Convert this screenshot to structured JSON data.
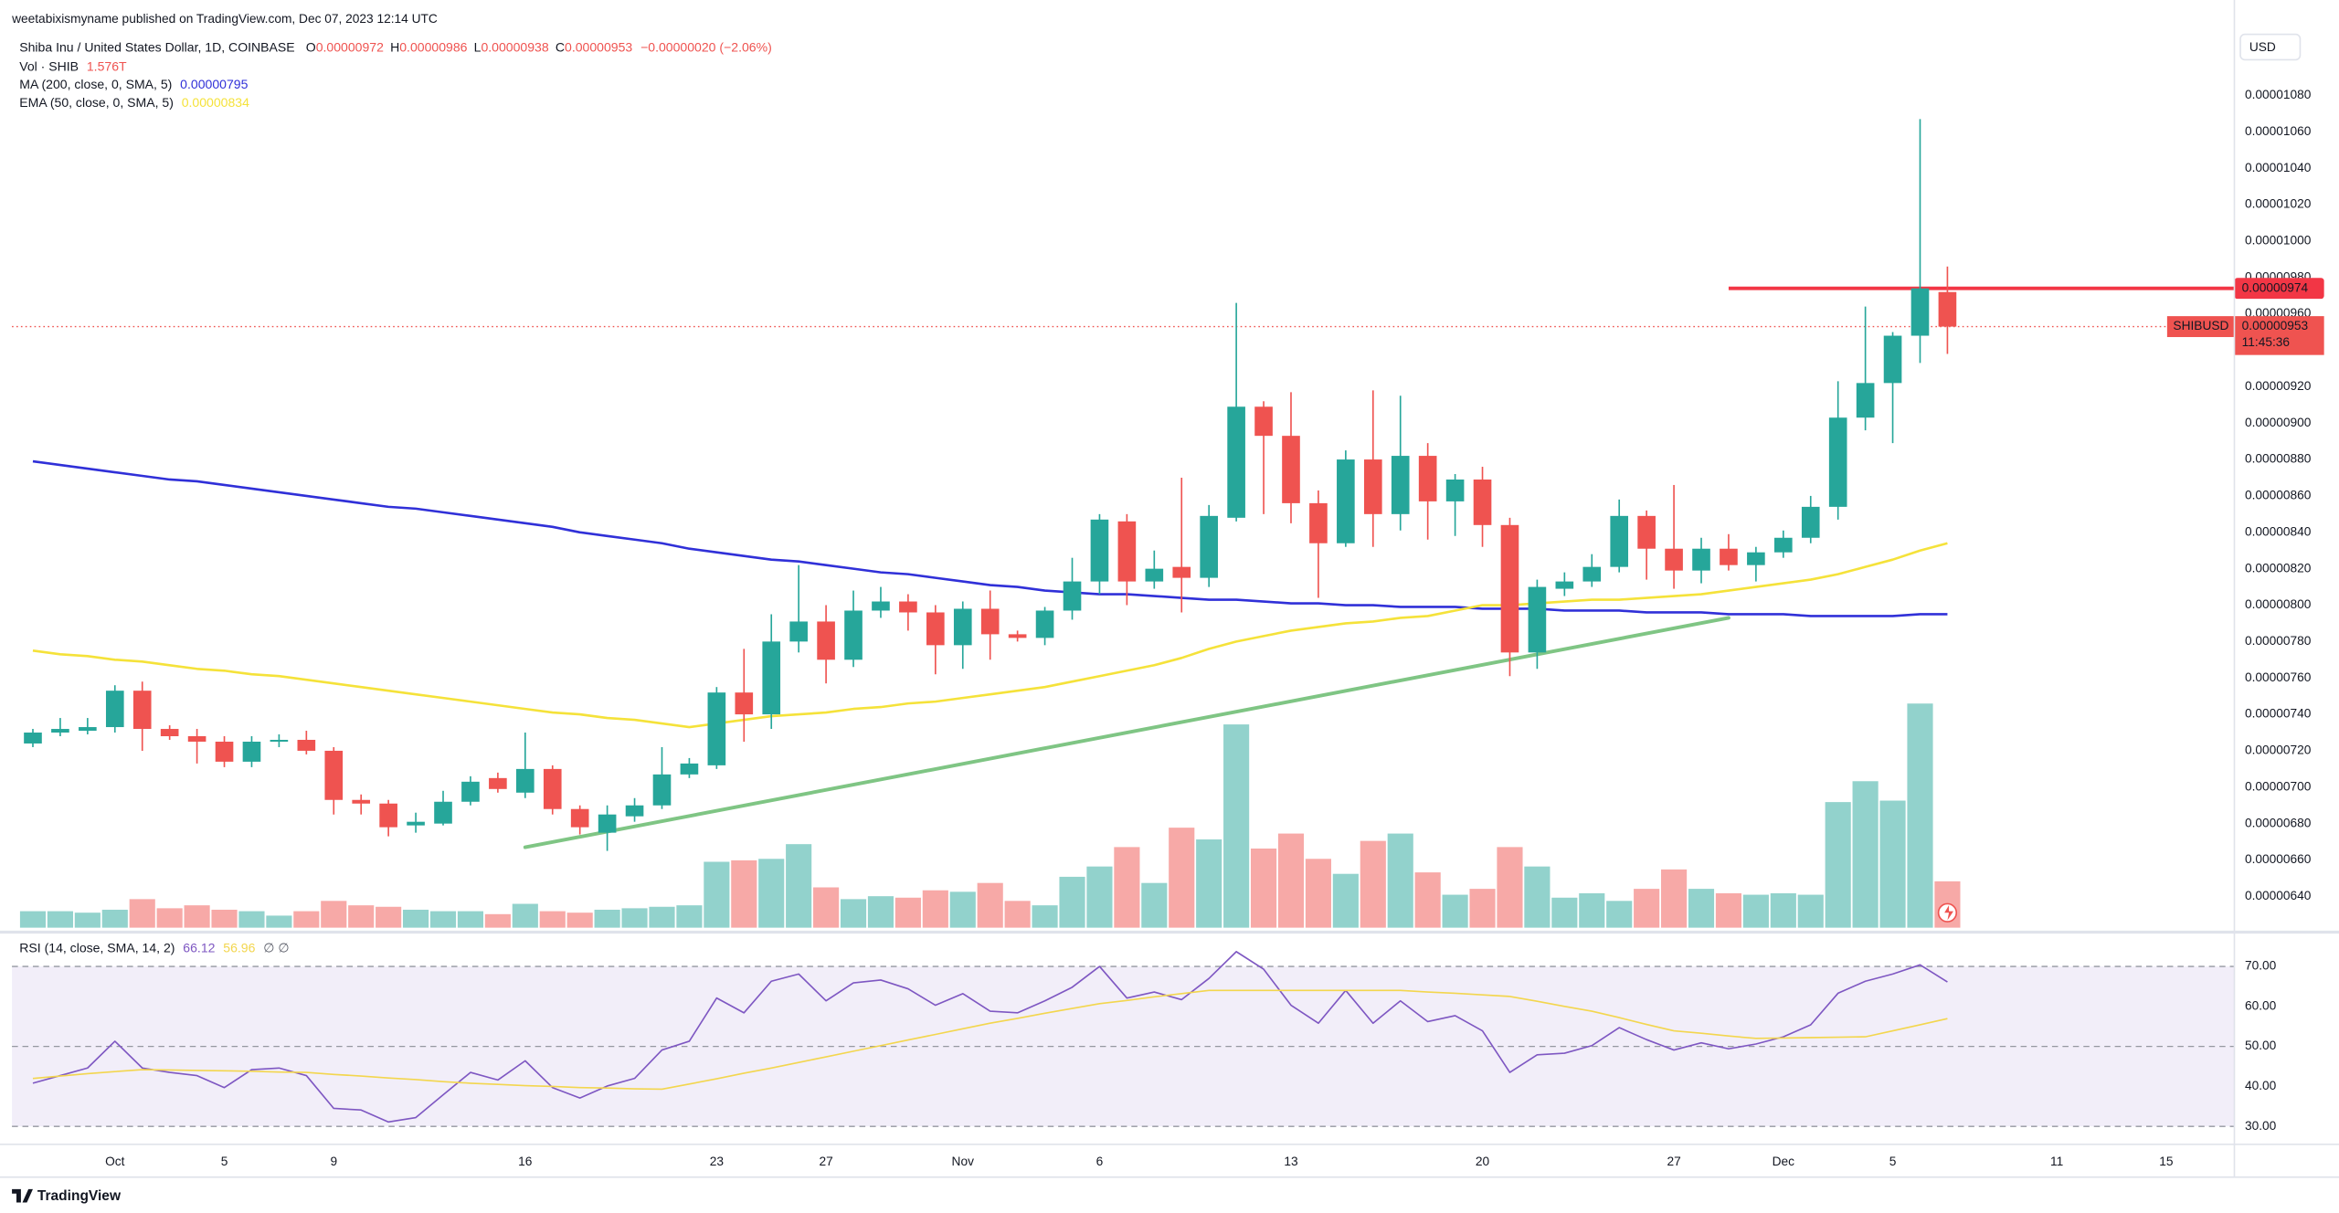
{
  "header": {
    "published": "weetabixismyname published on TradingView.com, Dec 07, 2023 12:14 UTC"
  },
  "footer": {
    "logo": "TradingView"
  },
  "chart_data": [
    {
      "type": "candlestick",
      "title": "Shiba Inu / United States Dollar, 1D, COINBASE",
      "ohlc_letters": [
        "O",
        "H",
        "L",
        "C"
      ],
      "change": "−0.00000020 (−2.06%)",
      "currency": "USD",
      "symbol_tag": "SHIBUSD",
      "countdown": "11:45:36",
      "up_color": "#26a69a",
      "down_color": "#ef5350",
      "ylim": [
        6.22e-06,
        1.116e-05
      ],
      "yticks": [
        {
          "value": 6.4e-06,
          "label": "0.00000640"
        },
        {
          "value": 6.6e-06,
          "label": "0.00000660"
        },
        {
          "value": 6.8e-06,
          "label": "0.00000680"
        },
        {
          "value": 7e-06,
          "label": "0.00000700"
        },
        {
          "value": 7.2e-06,
          "label": "0.00000720"
        },
        {
          "value": 7.4e-06,
          "label": "0.00000740"
        },
        {
          "value": 7.6e-06,
          "label": "0.00000760"
        },
        {
          "value": 7.8e-06,
          "label": "0.00000780"
        },
        {
          "value": 8e-06,
          "label": "0.00000800"
        },
        {
          "value": 8.2e-06,
          "label": "0.00000820"
        },
        {
          "value": 8.4e-06,
          "label": "0.00000840"
        },
        {
          "value": 8.6e-06,
          "label": "0.00000860"
        },
        {
          "value": 8.8e-06,
          "label": "0.00000880"
        },
        {
          "value": 9e-06,
          "label": "0.00000900"
        },
        {
          "value": 9.2e-06,
          "label": "0.00000920"
        },
        {
          "value": 9.4e-06,
          "label": "0.00000940"
        },
        {
          "value": 9.6e-06,
          "label": "0.00000960"
        },
        {
          "value": 9.8e-06,
          "label": "0.00000980"
        },
        {
          "value": 1e-05,
          "label": "0.00001000"
        },
        {
          "value": 1.02e-05,
          "label": "0.00001020"
        },
        {
          "value": 1.04e-05,
          "label": "0.00001040"
        },
        {
          "value": 1.06e-05,
          "label": "0.00001060"
        },
        {
          "value": 1.08e-05,
          "label": "0.00001080"
        }
      ],
      "xticks": [
        {
          "value": 3,
          "label": "Oct"
        },
        {
          "value": 7,
          "label": "5"
        },
        {
          "value": 11,
          "label": "9"
        },
        {
          "value": 18,
          "label": "16"
        },
        {
          "value": 25,
          "label": "23"
        },
        {
          "value": 29,
          "label": "27"
        },
        {
          "value": 34,
          "label": "Nov"
        },
        {
          "value": 39,
          "label": "6"
        },
        {
          "value": 46,
          "label": "13"
        },
        {
          "value": 53,
          "label": "20"
        },
        {
          "value": 60,
          "label": "27"
        },
        {
          "value": 64,
          "label": "Dec"
        },
        {
          "value": 68,
          "label": "5"
        },
        {
          "value": 74,
          "label": "11"
        },
        {
          "value": 78,
          "label": "15"
        }
      ],
      "open": [
        7.24e-06,
        7.3e-06,
        7.31e-06,
        7.33e-06,
        7.53e-06,
        7.32e-06,
        7.28e-06,
        7.25e-06,
        7.14e-06,
        7.25e-06,
        7.26e-06,
        7.2e-06,
        6.93e-06,
        6.91e-06,
        6.79e-06,
        6.8e-06,
        6.92e-06,
        7.05e-06,
        6.97e-06,
        7.1e-06,
        6.88e-06,
        6.75e-06,
        6.84e-06,
        6.9e-06,
        7.07e-06,
        7.12e-06,
        7.52e-06,
        7.4e-06,
        7.8e-06,
        7.91e-06,
        7.7e-06,
        7.97e-06,
        8.02e-06,
        7.96e-06,
        7.78e-06,
        7.98e-06,
        7.84e-06,
        7.82e-06,
        7.97e-06,
        8.13e-06,
        8.46e-06,
        8.13e-06,
        8.21e-06,
        8.15e-06,
        8.48e-06,
        9.09e-06,
        8.93e-06,
        8.56e-06,
        8.34e-06,
        8.8e-06,
        8.5e-06,
        8.82e-06,
        8.57e-06,
        8.69e-06,
        8.44e-06,
        7.74e-06,
        8.09e-06,
        8.13e-06,
        8.21e-06,
        8.49e-06,
        8.31e-06,
        8.19e-06,
        8.31e-06,
        8.22e-06,
        8.29e-06,
        8.37e-06,
        8.54e-06,
        9.03e-06,
        9.22e-06,
        9.48e-06,
        9.72e-06
      ],
      "high": [
        7.32e-06,
        7.38e-06,
        7.38e-06,
        7.56e-06,
        7.58e-06,
        7.34e-06,
        7.32e-06,
        7.28e-06,
        7.28e-06,
        7.29e-06,
        7.31e-06,
        7.22e-06,
        6.96e-06,
        6.93e-06,
        6.86e-06,
        6.98e-06,
        7.06e-06,
        7.08e-06,
        7.3e-06,
        7.12e-06,
        6.9e-06,
        6.9e-06,
        6.94e-06,
        7.22e-06,
        7.16e-06,
        7.55e-06,
        7.76e-06,
        7.95e-06,
        8.22e-06,
        8e-06,
        8.08e-06,
        8.1e-06,
        8.06e-06,
        8e-06,
        8.02e-06,
        8.08e-06,
        7.86e-06,
        7.99e-06,
        8.26e-06,
        8.5e-06,
        8.5e-06,
        8.3e-06,
        8.7e-06,
        8.55e-06,
        9.66e-06,
        9.12e-06,
        9.17e-06,
        8.63e-06,
        8.85e-06,
        9.18e-06,
        9.15e-06,
        8.89e-06,
        8.72e-06,
        8.76e-06,
        8.48e-06,
        8.14e-06,
        8.18e-06,
        8.28e-06,
        8.58e-06,
        8.52e-06,
        8.66e-06,
        8.37e-06,
        8.39e-06,
        8.32e-06,
        8.41e-06,
        8.6e-06,
        9.23e-06,
        9.64e-06,
        9.5e-06,
        1.067e-05,
        9.86e-06
      ],
      "low": [
        7.22e-06,
        7.28e-06,
        7.29e-06,
        7.3e-06,
        7.2e-06,
        7.26e-06,
        7.13e-06,
        7.11e-06,
        7.11e-06,
        7.22e-06,
        7.18e-06,
        6.85e-06,
        6.85e-06,
        6.73e-06,
        6.75e-06,
        6.79e-06,
        6.9e-06,
        6.97e-06,
        6.94e-06,
        6.85e-06,
        6.74e-06,
        6.65e-06,
        6.81e-06,
        6.88e-06,
        7.05e-06,
        7.1e-06,
        7.25e-06,
        7.32e-06,
        7.74e-06,
        7.57e-06,
        7.66e-06,
        7.93e-06,
        7.86e-06,
        7.62e-06,
        7.65e-06,
        7.7e-06,
        7.8e-06,
        7.78e-06,
        7.92e-06,
        8.06e-06,
        8e-06,
        8.09e-06,
        7.96e-06,
        8.1e-06,
        8.46e-06,
        8.5e-06,
        8.45e-06,
        8.04e-06,
        8.32e-06,
        8.32e-06,
        8.41e-06,
        8.36e-06,
        8.38e-06,
        8.32e-06,
        7.61e-06,
        7.65e-06,
        8.05e-06,
        8.1e-06,
        8.18e-06,
        8.14e-06,
        8.09e-06,
        8.12e-06,
        8.19e-06,
        8.13e-06,
        8.26e-06,
        8.34e-06,
        8.47e-06,
        8.96e-06,
        8.89e-06,
        9.33e-06,
        9.38e-06
      ],
      "close": [
        7.3e-06,
        7.32e-06,
        7.33e-06,
        7.53e-06,
        7.32e-06,
        7.28e-06,
        7.25e-06,
        7.14e-06,
        7.25e-06,
        7.26e-06,
        7.2e-06,
        6.93e-06,
        6.91e-06,
        6.78e-06,
        6.81e-06,
        6.92e-06,
        7.03e-06,
        6.99e-06,
        7.1e-06,
        6.88e-06,
        6.78e-06,
        6.85e-06,
        6.9e-06,
        7.07e-06,
        7.13e-06,
        7.52e-06,
        7.4e-06,
        7.8e-06,
        7.91e-06,
        7.7e-06,
        7.97e-06,
        8.02e-06,
        7.96e-06,
        7.78e-06,
        7.98e-06,
        7.84e-06,
        7.82e-06,
        7.97e-06,
        8.13e-06,
        8.47e-06,
        8.13e-06,
        8.2e-06,
        8.15e-06,
        8.49e-06,
        9.09e-06,
        8.93e-06,
        8.56e-06,
        8.34e-06,
        8.8e-06,
        8.5e-06,
        8.82e-06,
        8.57e-06,
        8.69e-06,
        8.44e-06,
        7.74e-06,
        8.1e-06,
        8.13e-06,
        8.21e-06,
        8.49e-06,
        8.31e-06,
        8.19e-06,
        8.31e-06,
        8.22e-06,
        8.29e-06,
        8.37e-06,
        8.54e-06,
        9.03e-06,
        9.22e-06,
        9.48e-06,
        9.74e-06,
        9.53e-06
      ],
      "volume": {
        "name": "Vol · SHIB",
        "last_label": "1.576T",
        "up_color": "rgba(38,166,154,0.5)",
        "down_color": "rgba(239,83,80,0.5)",
        "values": [
          0.56,
          0.56,
          0.51,
          0.61,
          0.97,
          0.66,
          0.76,
          0.61,
          0.56,
          0.41,
          0.56,
          0.91,
          0.76,
          0.71,
          0.61,
          0.56,
          0.56,
          0.46,
          0.81,
          0.56,
          0.51,
          0.61,
          0.66,
          0.71,
          0.76,
          2.24,
          2.29,
          2.34,
          2.84,
          1.37,
          0.97,
          1.07,
          1.02,
          1.27,
          1.22,
          1.52,
          0.91,
          0.76,
          1.73,
          2.08,
          2.74,
          1.52,
          3.4,
          3.0,
          6.91,
          2.69,
          3.2,
          2.34,
          1.83,
          2.95,
          3.2,
          1.88,
          1.12,
          1.32,
          2.74,
          2.08,
          1.02,
          1.17,
          0.91,
          1.32,
          1.98,
          1.32,
          1.17,
          1.12,
          1.17,
          1.12,
          4.27,
          4.98,
          4.32,
          7.62,
          1.576
        ]
      },
      "series": [
        {
          "name": "MA (200, close, 0, SMA, 5)",
          "color": "#3030d8",
          "values": [
            8.79e-06,
            8.77e-06,
            8.75e-06,
            8.73e-06,
            8.71e-06,
            8.69e-06,
            8.68e-06,
            8.66e-06,
            8.64e-06,
            8.62e-06,
            8.6e-06,
            8.58e-06,
            8.56e-06,
            8.54e-06,
            8.53e-06,
            8.51e-06,
            8.49e-06,
            8.47e-06,
            8.45e-06,
            8.43e-06,
            8.4e-06,
            8.38e-06,
            8.36e-06,
            8.34e-06,
            8.31e-06,
            8.29e-06,
            8.27e-06,
            8.25e-06,
            8.24e-06,
            8.22e-06,
            8.2e-06,
            8.18e-06,
            8.17e-06,
            8.15e-06,
            8.13e-06,
            8.11e-06,
            8.1e-06,
            8.08e-06,
            8.07e-06,
            8.06e-06,
            8.06e-06,
            8.05e-06,
            8.04e-06,
            8.03e-06,
            8.03e-06,
            8.02e-06,
            8.01e-06,
            8.01e-06,
            8e-06,
            8e-06,
            7.99e-06,
            7.99e-06,
            7.99e-06,
            7.98e-06,
            7.98e-06,
            7.98e-06,
            7.97e-06,
            7.97e-06,
            7.97e-06,
            7.96e-06,
            7.96e-06,
            7.96e-06,
            7.95e-06,
            7.95e-06,
            7.95e-06,
            7.94e-06,
            7.94e-06,
            7.94e-06,
            7.94e-06,
            7.95e-06,
            7.95e-06
          ]
        },
        {
          "name": "EMA (50, close, 0, SMA, 5)",
          "color": "#f5e23a",
          "values": [
            7.75e-06,
            7.73e-06,
            7.72e-06,
            7.7e-06,
            7.69e-06,
            7.67e-06,
            7.65e-06,
            7.64e-06,
            7.62e-06,
            7.61e-06,
            7.59e-06,
            7.57e-06,
            7.55e-06,
            7.53e-06,
            7.51e-06,
            7.49e-06,
            7.47e-06,
            7.45e-06,
            7.43e-06,
            7.41e-06,
            7.4e-06,
            7.38e-06,
            7.37e-06,
            7.35e-06,
            7.33e-06,
            7.35e-06,
            7.37e-06,
            7.39e-06,
            7.4e-06,
            7.41e-06,
            7.43e-06,
            7.44e-06,
            7.46e-06,
            7.47e-06,
            7.49e-06,
            7.51e-06,
            7.53e-06,
            7.55e-06,
            7.58e-06,
            7.61e-06,
            7.64e-06,
            7.67e-06,
            7.71e-06,
            7.76e-06,
            7.8e-06,
            7.83e-06,
            7.86e-06,
            7.88e-06,
            7.9e-06,
            7.91e-06,
            7.93e-06,
            7.94e-06,
            7.97e-06,
            8e-06,
            8e-06,
            8.01e-06,
            8.02e-06,
            8.03e-06,
            8.03e-06,
            8.04e-06,
            8.05e-06,
            8.06e-06,
            8.08e-06,
            8.1e-06,
            8.12e-06,
            8.14e-06,
            8.17e-06,
            8.21e-06,
            8.25e-06,
            8.3e-06,
            8.34e-06
          ]
        }
      ],
      "drawings": [
        {
          "color": "#7fc584",
          "points": [
            {
              "x": 18,
              "y": 6.67e-06
            },
            {
              "x": 62,
              "y": 7.93e-06
            }
          ]
        },
        {
          "color": "#f23645",
          "extend": "right",
          "points": [
            {
              "x": 62,
              "y": 9.74e-06
            }
          ]
        }
      ]
    },
    {
      "type": "line",
      "title": "RSI (14, close, SMA, 14, 2)",
      "extra": "∅ ∅",
      "ylim": [
        25.9,
        78.2
      ],
      "yticks": [
        {
          "value": 30,
          "label": "30.00"
        },
        {
          "value": 40,
          "label": "40.00"
        },
        {
          "value": 50,
          "label": "50.00"
        },
        {
          "value": 60,
          "label": "60.00"
        },
        {
          "value": 70,
          "label": "70.00"
        }
      ],
      "levels": [
        70,
        50,
        30
      ],
      "band_color": "rgba(126,87,194,0.1)",
      "series": [
        {
          "color": "#7e57c2",
          "values": [
            40.8,
            42.7,
            44.6,
            51.3,
            44.6,
            43.5,
            42.7,
            39.7,
            44.2,
            44.6,
            42.7,
            34.5,
            34.1,
            31.1,
            32.2,
            37.9,
            43.5,
            41.6,
            46.4,
            39.7,
            37.1,
            40.1,
            42.0,
            49.1,
            51.3,
            62.1,
            58.4,
            66.3,
            68.1,
            61.4,
            65.9,
            66.6,
            64.4,
            60.3,
            63.2,
            58.8,
            58.4,
            61.4,
            64.8,
            70.0,
            62.1,
            63.6,
            61.7,
            67.0,
            73.7,
            69.3,
            60.3,
            55.8,
            64.0,
            55.8,
            61.4,
            56.2,
            57.7,
            53.9,
            43.5,
            47.9,
            48.3,
            50.2,
            54.7,
            51.7,
            49.1,
            50.9,
            49.4,
            50.6,
            52.4,
            55.4,
            63.3,
            66.3,
            68.1,
            70.4,
            66.12
          ]
        },
        {
          "color": "#f3d64e",
          "values": [
            42,
            42.6,
            43.2,
            43.7,
            44.2,
            44.1,
            44,
            43.9,
            43.8,
            43.6,
            43.5,
            43,
            42.6,
            42.1,
            41.7,
            41.2,
            40.8,
            40.5,
            40.2,
            40,
            39.7,
            39.6,
            39.4,
            39.3,
            40.6,
            41.9,
            43.3,
            44.6,
            46,
            47.4,
            48.8,
            50.2,
            51.6,
            53,
            54.4,
            55.8,
            57,
            58.3,
            59.5,
            60.7,
            61.5,
            62.4,
            63.2,
            64,
            64,
            64,
            64,
            64,
            64,
            64,
            64,
            63.6,
            63.3,
            62.9,
            62.5,
            61.3,
            60,
            58.8,
            57.2,
            55.5,
            53.9,
            53.3,
            52.6,
            52,
            52.1,
            52.2,
            52.3,
            52.4,
            53.9,
            55.4,
            56.96
          ]
        }
      ]
    }
  ]
}
